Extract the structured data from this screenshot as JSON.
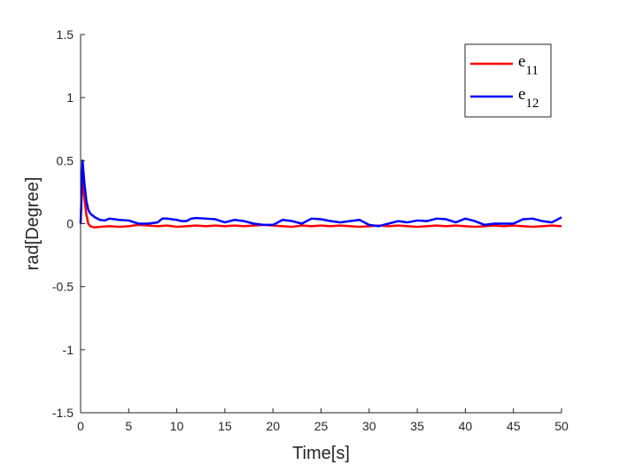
{
  "chart_data": {
    "type": "line",
    "title": "",
    "xlabel": "Time[s]",
    "ylabel": "rad[Degree]",
    "xlim": [
      0,
      50
    ],
    "ylim": [
      -1.5,
      1.5
    ],
    "xticks": [
      0,
      5,
      10,
      15,
      20,
      25,
      30,
      35,
      40,
      45,
      50
    ],
    "yticks": [
      -1.5,
      -1,
      -0.5,
      0,
      0.5,
      1,
      1.5
    ],
    "xtick_labels": [
      "0",
      "5",
      "10",
      "15",
      "20",
      "25",
      "30",
      "35",
      "40",
      "45",
      "50"
    ],
    "ytick_labels": [
      "-1.5",
      "-1",
      "-0.5",
      "0",
      "0.5",
      "1",
      "1.5"
    ],
    "grid": false,
    "legend_position": "top-right",
    "series": [
      {
        "name": "e11",
        "label_base": "e",
        "label_sub": "11",
        "color": "#ff0000",
        "x": [
          0,
          0.2,
          0.4,
          0.6,
          0.8,
          1.0,
          1.2,
          1.5,
          2,
          3,
          4,
          5,
          6,
          7,
          8,
          9,
          10,
          11,
          12,
          13,
          14,
          15,
          16,
          17,
          18,
          19,
          20,
          21,
          22,
          23,
          24,
          25,
          26,
          27,
          28,
          29,
          30,
          31,
          32,
          33,
          34,
          35,
          36,
          37,
          38,
          39,
          40,
          41,
          42,
          43,
          44,
          45,
          46,
          47,
          48,
          49,
          50
        ],
        "y": [
          0.0,
          0.38,
          0.2,
          0.07,
          0.0,
          -0.02,
          -0.025,
          -0.03,
          -0.025,
          -0.02,
          -0.025,
          -0.02,
          -0.01,
          -0.015,
          -0.02,
          -0.015,
          -0.025,
          -0.02,
          -0.015,
          -0.02,
          -0.015,
          -0.02,
          -0.015,
          -0.02,
          -0.015,
          -0.01,
          -0.015,
          -0.02,
          -0.025,
          -0.015,
          -0.02,
          -0.015,
          -0.02,
          -0.015,
          -0.02,
          -0.025,
          -0.02,
          -0.015,
          -0.02,
          -0.015,
          -0.02,
          -0.025,
          -0.02,
          -0.015,
          -0.02,
          -0.015,
          -0.02,
          -0.025,
          -0.02,
          -0.015,
          -0.02,
          -0.015,
          -0.02,
          -0.025,
          -0.02,
          -0.015,
          -0.02
        ]
      },
      {
        "name": "e12",
        "label_base": "e",
        "label_sub": "12",
        "color": "#0000ff",
        "x": [
          0,
          0.2,
          0.4,
          0.6,
          0.8,
          1.0,
          1.5,
          2,
          2.5,
          3,
          3.5,
          4,
          5,
          6,
          7,
          8,
          8.5,
          9,
          10,
          10.5,
          11,
          11.5,
          12,
          13,
          14,
          15,
          16,
          17,
          18,
          19,
          20,
          21,
          22,
          23,
          24,
          25,
          26,
          27,
          28,
          29,
          30,
          31,
          32,
          33,
          34,
          35,
          36,
          37,
          38,
          39,
          40,
          41,
          42,
          43,
          44,
          45,
          46,
          47,
          48,
          49,
          50
        ],
        "y": [
          0.0,
          0.5,
          0.32,
          0.18,
          0.11,
          0.08,
          0.05,
          0.03,
          0.025,
          0.04,
          0.035,
          0.03,
          0.025,
          0.0,
          0.0,
          0.01,
          0.04,
          0.04,
          0.03,
          0.02,
          0.02,
          0.04,
          0.045,
          0.04,
          0.035,
          0.01,
          0.03,
          0.02,
          0.0,
          -0.01,
          -0.01,
          0.03,
          0.02,
          0.0,
          0.04,
          0.035,
          0.02,
          0.01,
          0.02,
          0.03,
          -0.01,
          -0.02,
          0.0,
          0.02,
          0.01,
          0.025,
          0.02,
          0.04,
          0.035,
          0.01,
          0.04,
          0.02,
          -0.01,
          0.0,
          0.0,
          0.0,
          0.035,
          0.04,
          0.02,
          0.01,
          0.05
        ]
      }
    ]
  }
}
